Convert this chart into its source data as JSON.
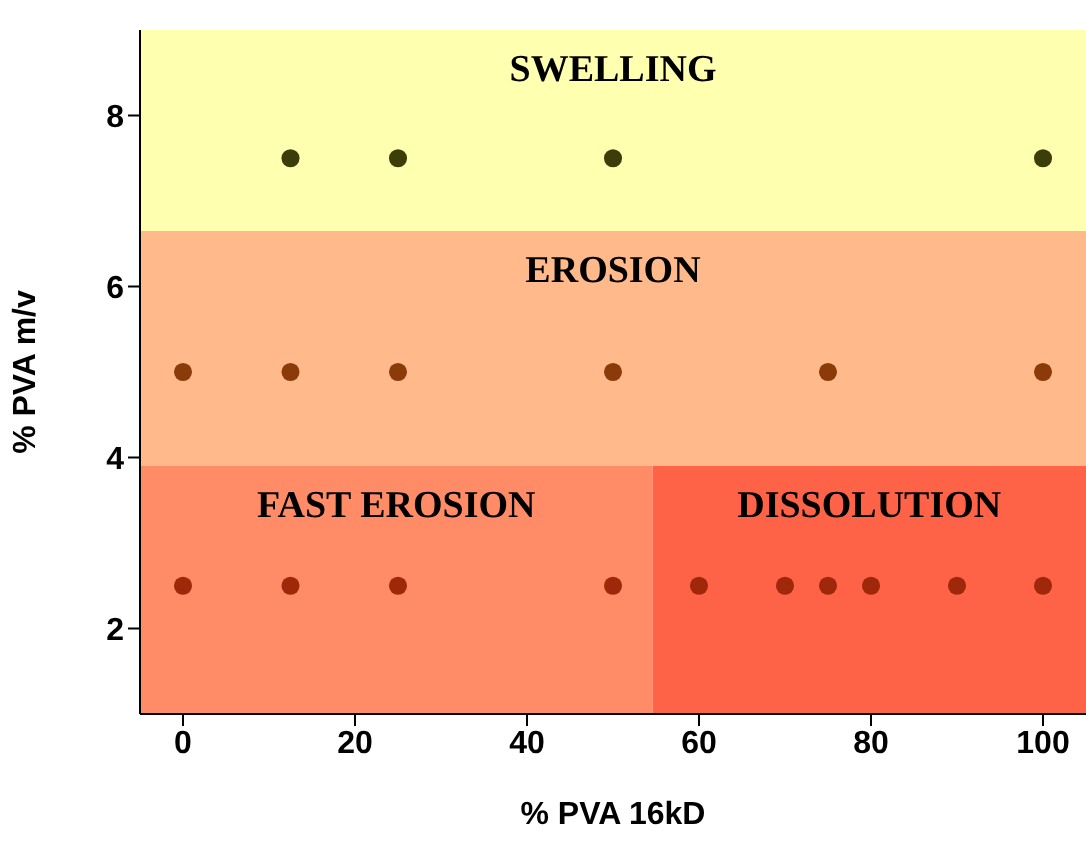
{
  "chart_data": {
    "type": "scatter",
    "xlabel": "% PVA 16kD",
    "ylabel": "% PVA m/v",
    "xlim": [
      -5,
      105
    ],
    "ylim": [
      1,
      9
    ],
    "xticks": [
      0,
      20,
      40,
      60,
      80,
      100
    ],
    "yticks": [
      2,
      4,
      6,
      8
    ],
    "grid": false,
    "legend": false,
    "marker": "circle",
    "series": [
      {
        "color": "#3d3d0a",
        "x": [
          12.5,
          25,
          50,
          100
        ],
        "values": [
          7.5,
          7.5,
          7.5,
          7.5
        ]
      },
      {
        "color": "#8b3a0a",
        "x": [
          0,
          12.5,
          25,
          50,
          75,
          100
        ],
        "values": [
          5,
          5,
          5,
          5,
          5,
          5
        ]
      },
      {
        "color": "#a0280a",
        "x": [
          0,
          12.5,
          25,
          50,
          60,
          70,
          75,
          80,
          90,
          100
        ],
        "values": [
          2.5,
          2.5,
          2.5,
          2.5,
          2.5,
          2.5,
          2.5,
          2.5,
          2.5,
          2.5
        ]
      }
    ],
    "bands": [
      {
        "axis": "x",
        "from": -5,
        "to": 54.6,
        "label": "FAST EROSION",
        "color": "#ff8c66"
      },
      {
        "axis": "x",
        "from": 54.6,
        "to": 105,
        "label": "DISSOLUTION",
        "color": "#ff6347"
      },
      {
        "axis": "y",
        "from": 6.65,
        "to": 9,
        "label": "SWELLING",
        "color": "#ffffb0"
      },
      {
        "axis": "y",
        "from": 3.9,
        "to": 6.65,
        "label": "EROSION",
        "color": "#ffb98a"
      }
    ]
  }
}
